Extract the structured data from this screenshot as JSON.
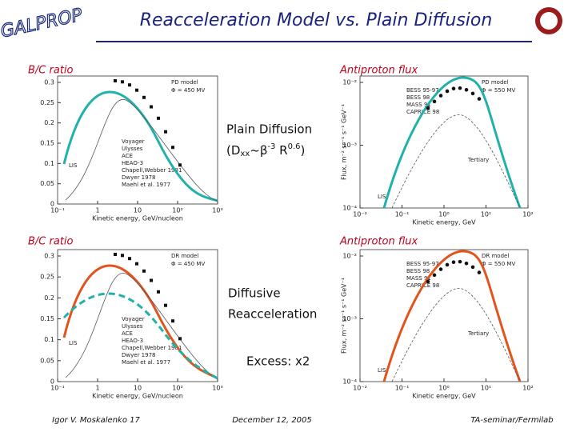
{
  "header": {
    "logo": "GALPROP",
    "title": "Reacceleration Model vs. Plain Diffusion"
  },
  "panels": [
    {
      "label": "B/C ratio",
      "model": "PD model",
      "phi": "Φ = 450 MV",
      "yticks": [
        "0.3",
        "0.25",
        "0.2",
        "0.15",
        "0.1",
        "0.05",
        "0"
      ],
      "xticks": [
        "10⁻¹",
        "1",
        "10",
        "10²",
        "10³"
      ],
      "xlabel": "Kinetic energy, GeV/nucleon",
      "legend": [
        "Voyager",
        "Ulysses",
        "ACE",
        "HEAO-3",
        "Chapell,Webber 1981",
        "Dwyer 1978",
        "Maehl et al. 1977"
      ],
      "lis": "LIS"
    },
    {
      "label": "Antiproton flux",
      "model": "PD model",
      "phi": "Φ = 550 MV",
      "yticks": [
        "10⁻²",
        "10⁻³",
        "10⁻⁴"
      ],
      "xticks": [
        "10⁻²",
        "10⁻¹",
        "10⁰",
        "10¹",
        "10²"
      ],
      "xlabel": "Kinetic energy, GeV",
      "ylabel": "Flux, m⁻² sr⁻¹ s⁻¹ GeV⁻¹",
      "legend": [
        "BESS 95-97",
        "BESS 98",
        "MASS 91",
        "CAPRICE 98"
      ],
      "lis": "LIS",
      "tertiary": "Tertiary"
    },
    {
      "label": "B/C ratio",
      "model": "DR model",
      "phi": "Φ = 450 MV",
      "yticks": [
        "0.3",
        "0.25",
        "0.2",
        "0.15",
        "0.1",
        "0.05",
        "0"
      ],
      "xticks": [
        "10⁻¹",
        "1",
        "10",
        "10²",
        "10³"
      ],
      "xlabel": "Kinetic energy, GeV/nucleon",
      "legend": [
        "Voyager",
        "Ulysses",
        "ACE",
        "HEAO-3",
        "Chapell,Webber 1981",
        "Dwyer 1978",
        "Maehl et al. 1977"
      ],
      "lis": "LIS"
    },
    {
      "label": "Antiproton flux",
      "model": "DR model",
      "phi": "Φ = 550 MV",
      "yticks": [
        "10⁻²",
        "10⁻³",
        "10⁻⁴"
      ],
      "xticks": [
        "10⁻²",
        "10⁻¹",
        "10⁰",
        "10¹",
        "10²"
      ],
      "xlabel": "Kinetic energy, GeV",
      "ylabel": "Flux, m⁻² sr⁻¹ s⁻¹ GeV⁻¹",
      "legend": [
        "BESS 95-97",
        "BESS 98",
        "MASS 91",
        "CAPRICE 98"
      ],
      "lis": "LIS",
      "tertiary": "Tertiary"
    }
  ],
  "notes": {
    "plain": "Plain Diffusion",
    "formula": [
      "(D",
      "xx",
      "~β",
      "-3",
      " R",
      "0.6",
      ")"
    ],
    "diffusive": "Diffusive",
    "reacceleration": "Reacceleration",
    "excess": "Excess: x2"
  },
  "footer": {
    "author": "Igor V. Moskalenko  17",
    "date": "December 12, 2005",
    "venue": "TA-seminar/Fermilab"
  }
}
